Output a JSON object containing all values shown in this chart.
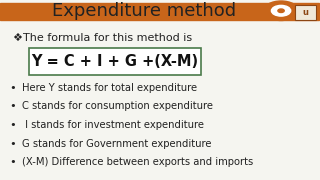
{
  "title": "Expenditure method",
  "title_fontsize": 13,
  "title_color": "#333333",
  "bg_color": "#f5f5f0",
  "header_bar_color": "#c8651a",
  "formula_intro": "❖The formula for this method is",
  "formula": "Y = C + I + G +(X-M)",
  "formula_box_color": "#4a7a4a",
  "formula_fontsize": 10.5,
  "bullet_points": [
    "Here Y stands for total expenditure",
    "C stands for consumption expenditure",
    " I stands for investment expenditure",
    "G stands for Government expenditure",
    "(X-M) Difference between exports and imports"
  ],
  "bullet_fontsize": 7.2,
  "bullet_color": "#222222",
  "intro_fontsize": 8.0
}
